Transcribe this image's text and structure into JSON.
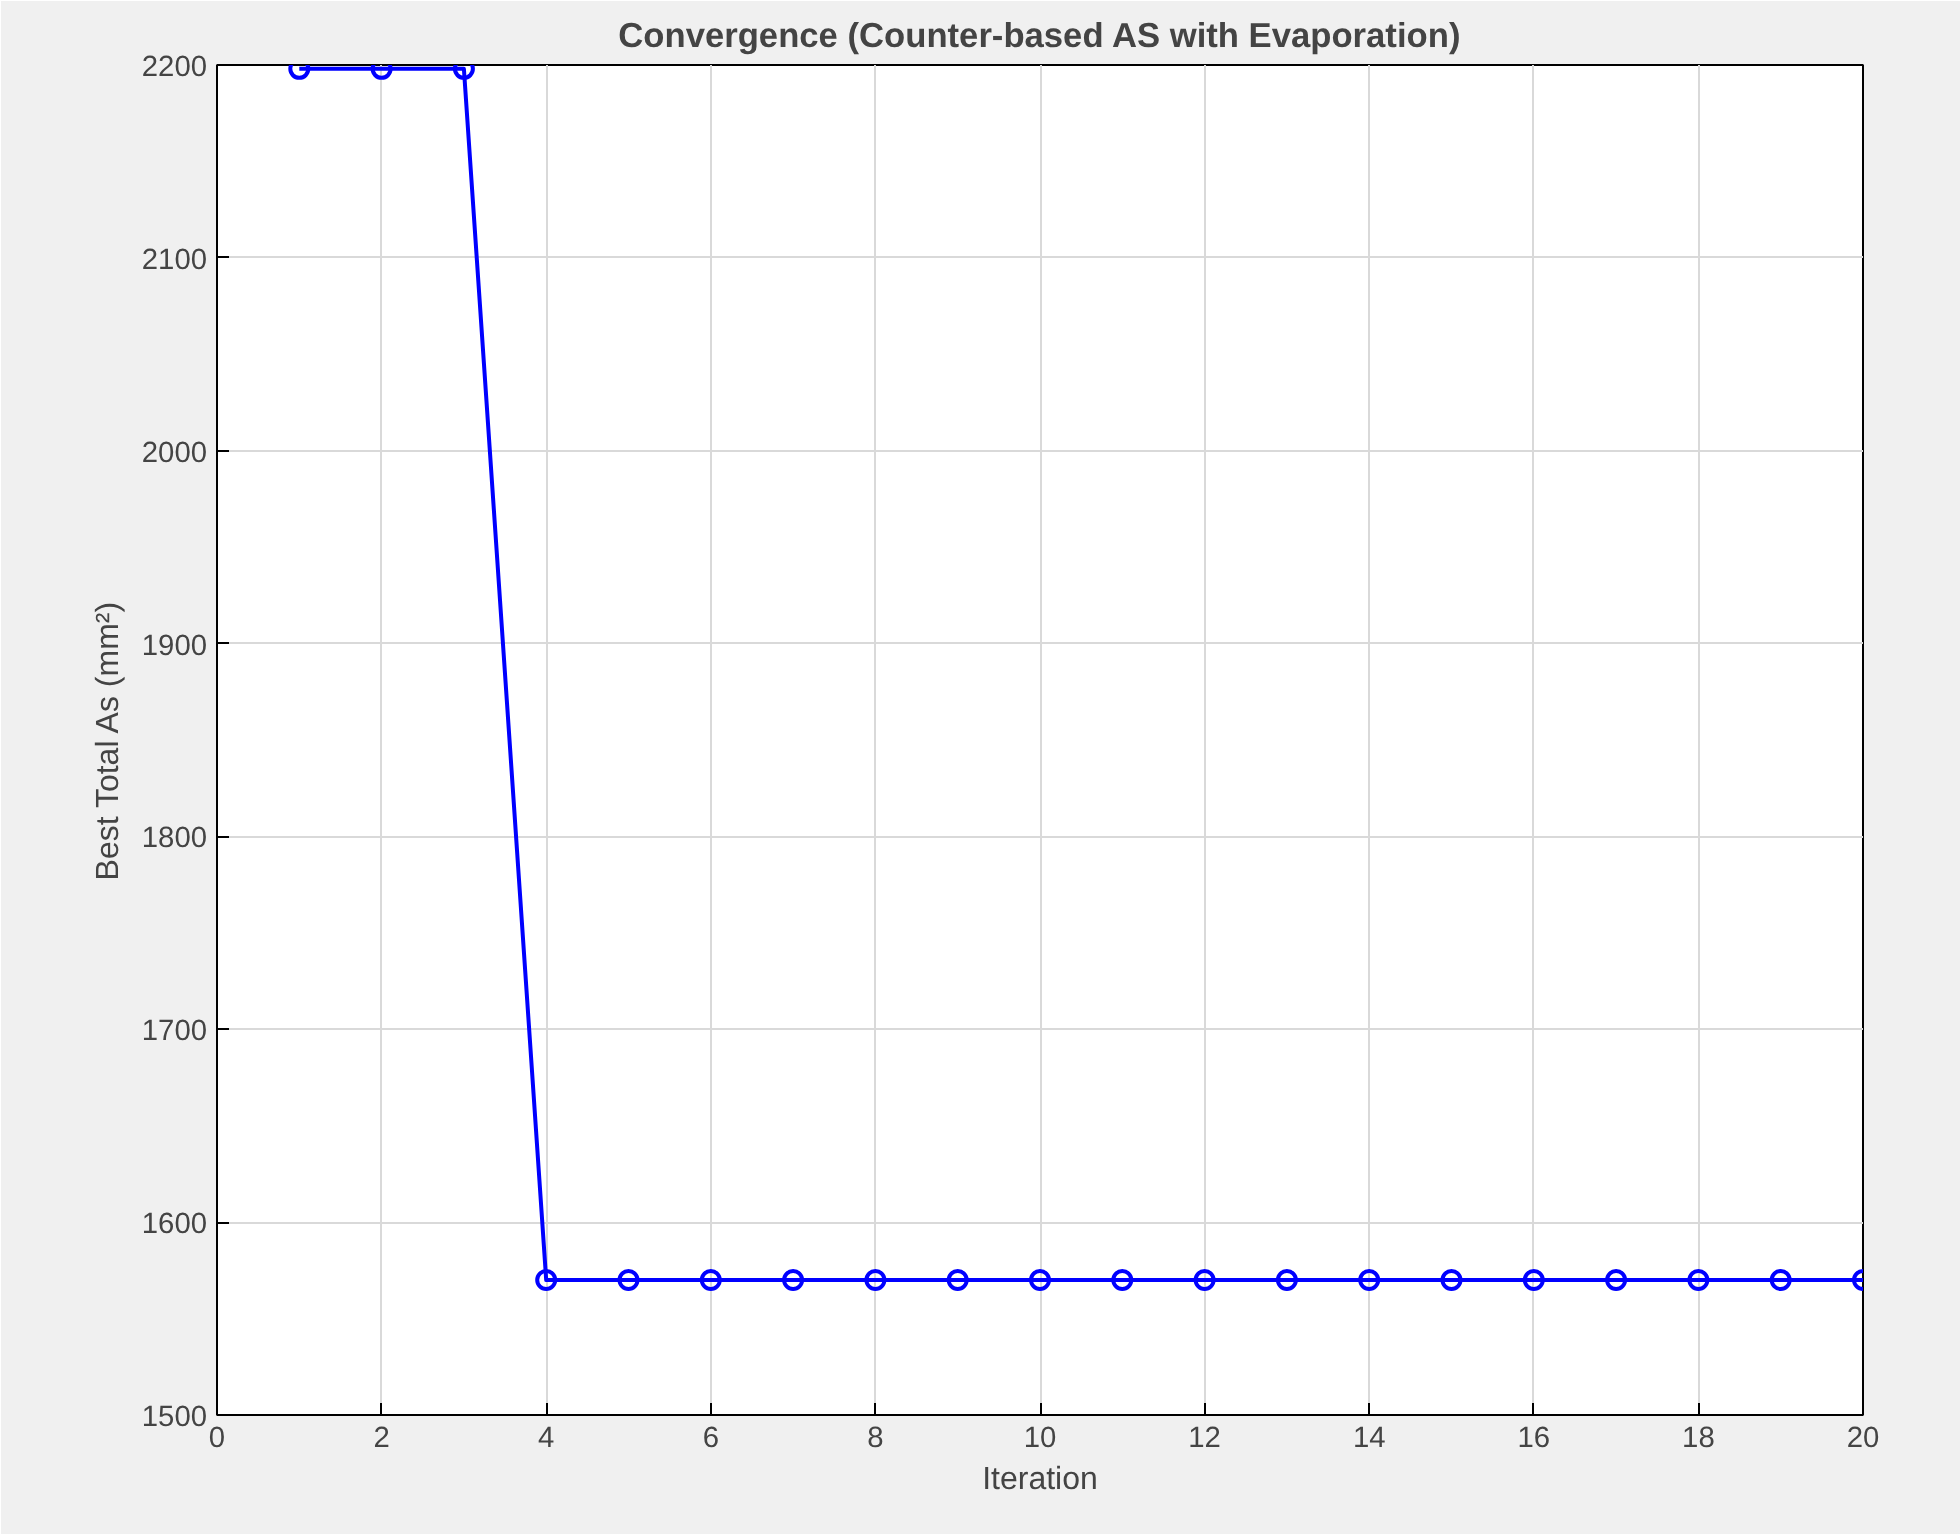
{
  "chart_data": {
    "type": "line",
    "title": "Convergence (Counter-based AS with Evaporation)",
    "xlabel": "Iteration",
    "ylabel": "Best Total As (mm²)",
    "x": [
      1,
      2,
      3,
      4,
      5,
      6,
      7,
      8,
      9,
      10,
      11,
      12,
      13,
      14,
      15,
      16,
      17,
      18,
      19,
      20
    ],
    "values": [
      2198,
      2198,
      2198,
      1570,
      1570,
      1570,
      1570,
      1570,
      1570,
      1570,
      1570,
      1570,
      1570,
      1570,
      1570,
      1570,
      1570,
      1570,
      1570,
      1570
    ],
    "color": "#0000ff",
    "xlim": [
      0,
      20
    ],
    "ylim": [
      1500,
      2200
    ],
    "xticks": [
      0,
      2,
      4,
      6,
      8,
      10,
      12,
      14,
      16,
      18,
      20
    ],
    "yticks": [
      1500,
      1600,
      1700,
      1800,
      1900,
      2000,
      2100,
      2200
    ],
    "grid": true,
    "marker": "circle",
    "line_style": "solid"
  }
}
